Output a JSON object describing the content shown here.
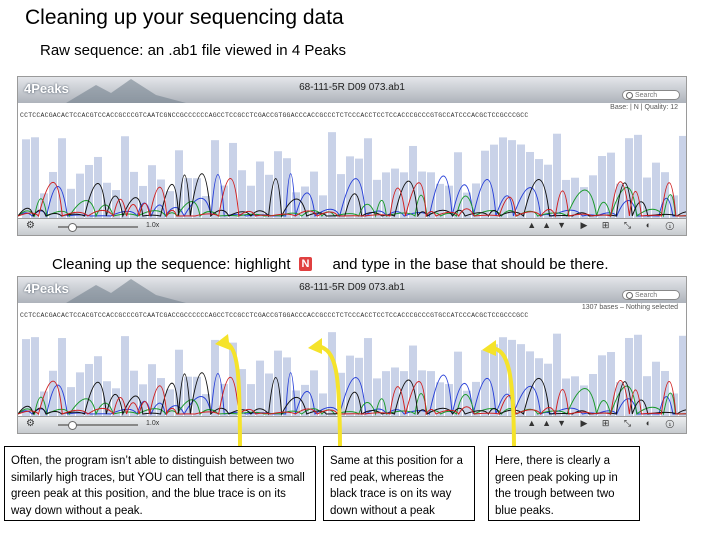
{
  "title": "Cleaning up your sequencing data",
  "subtitle": "Raw sequence: an  .ab1 file viewed in 4 Peaks",
  "caption2_before": "Cleaning up the sequence: highlight",
  "caption2_chip": "N",
  "caption2_after": "and type in the base that should be there.",
  "window1": {
    "app": "4Peaks",
    "title": "68-111-5R D09 073.ab1",
    "search_placeholder": "Search",
    "status": "Base: | N | Quality: 12",
    "sequence": "CCTCCACGACACTCCACGTCCACCGCCCGTCAATCGNCCGCCCCCCAGCCTCCGCCTCGACCGTGGACCCACCGCCCTCTCCCACCTCCTCCACCCGCCCGTGCCATCCCACGCTCCGCCCGCC",
    "zoom": "1.0x"
  },
  "window2": {
    "app": "4Peaks",
    "title": "68-111-5R D09 073.ab1",
    "search_placeholder": "Search",
    "status": "1307 bases – Nothing selected",
    "sequence": "CCTCCACGACACTCCACGTCCACCGCCCGTCAATCGACCGCCCCCCAGCCTCCGCCTCGACCGTGGACCCACCGCCCTCTCCCACCTCCTCCACCCGCCCGTGCCATCCCACGCTCCGCCCGCC",
    "zoom": "1.0x"
  },
  "annotations": [
    "Often, the program isn’t able to distinguish between two similarly high traces, but YOU can tell that there is a small green peak at this position, and the blue trace is on its way down without a peak.",
    "Same at this position for a red peak, whereas the black trace is on its way down without a peak",
    "Here, there is clearly a green peak poking up in the trough between two blue peaks."
  ],
  "colors": {
    "arrow": "#f5e32a",
    "trace_blue": "#2840d8",
    "trace_green": "#1a9a2a",
    "trace_black": "#111111",
    "trace_red": "#d02020",
    "quality_bar": "#c9d2e8"
  },
  "icons": [
    "gear-icon",
    "search-icon",
    "play-icon",
    "zoom-icon"
  ]
}
